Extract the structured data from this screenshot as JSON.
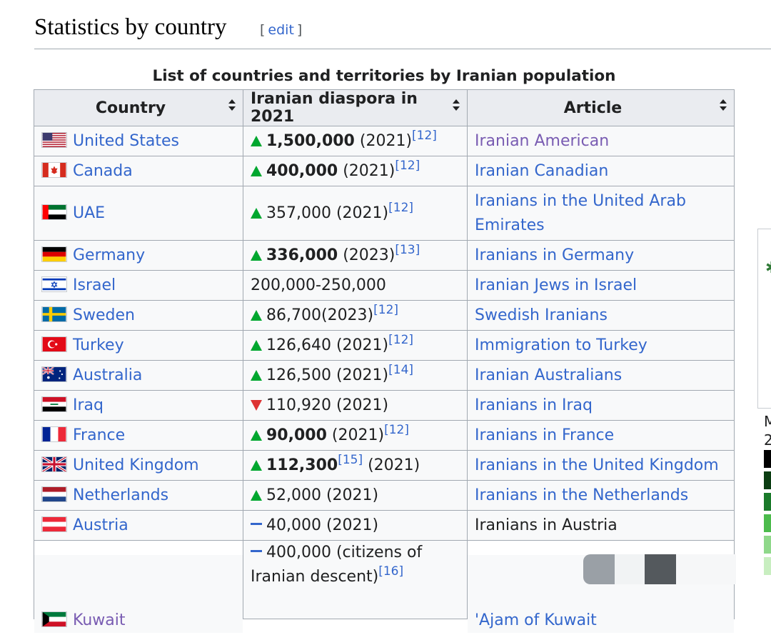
{
  "section": {
    "title": "Statistics by country",
    "edit_open": "[",
    "edit_label": "edit",
    "edit_close": "]"
  },
  "table": {
    "caption": "List of countries and territories by Iranian population",
    "headers": [
      "Country",
      "Iranian diaspora in 2021",
      "Article"
    ],
    "rows": [
      {
        "country": "United States",
        "flag": "us-flag",
        "trend": "up",
        "value": "1,500,000",
        "bold": true,
        "year": " (2021)",
        "ref": "[12]",
        "article": "Iranian American",
        "article_visited": true
      },
      {
        "country": "Canada",
        "flag": "canada-flag",
        "trend": "up",
        "value": "400,000",
        "bold": true,
        "year": " (2021)",
        "ref": "[12]",
        "article": "Iranian Canadian"
      },
      {
        "country": "UAE",
        "flag": "uae-flag",
        "trend": "up",
        "value": "357,000",
        "year": " (2021)",
        "ref": "[12]",
        "article": "Iranians in the United Arab Emirates"
      },
      {
        "country": "Germany",
        "flag": "germany-flag",
        "trend": "up",
        "value": "336,000",
        "bold": true,
        "year": " (2023)",
        "ref": "[13]",
        "article": "Iranians in Germany"
      },
      {
        "country": "Israel",
        "flag": "israel-flag",
        "trend": "",
        "value": "200,000-250,000",
        "year": "",
        "ref": "",
        "article": "Iranian Jews in Israel"
      },
      {
        "country": "Sweden",
        "flag": "sweden-flag",
        "trend": "up",
        "value": "86,700",
        "year": "(2023)",
        "ref": "[12]",
        "article": "Swedish Iranians"
      },
      {
        "country": "Turkey",
        "flag": "turkey-flag",
        "trend": "up",
        "value": "126,640",
        "year": " (2021)",
        "ref": "[12]",
        "article": "Immigration to Turkey"
      },
      {
        "country": "Australia",
        "flag": "australia-flag",
        "trend": "up",
        "value": "126,500",
        "year": " (2021)",
        "ref": "[14]",
        "article": "Iranian Australians"
      },
      {
        "country": "Iraq",
        "flag": "iraq-flag",
        "trend": "down",
        "value": "110,920",
        "year": " (2021)",
        "ref": "",
        "article": "Iranians in Iraq"
      },
      {
        "country": "France",
        "flag": "france-flag",
        "trend": "up",
        "value": "90,000",
        "bold": true,
        "year": " (2021)",
        "ref": "[12]",
        "article": "Iranians in France"
      },
      {
        "country": "United Kingdom",
        "flag": "uk-flag",
        "trend": "up",
        "value": "112,300",
        "bold": true,
        "ref_inline": "[15]",
        "year": " (2021)",
        "ref": "",
        "article": "Iranians in the United Kingdom"
      },
      {
        "country": "Netherlands",
        "flag": "netherlands-flag",
        "trend": "up",
        "value": "52,000",
        "year": " (2021)",
        "ref": "",
        "article": "Iranians in the Netherlands"
      },
      {
        "country": "Austria",
        "flag": "austria-flag",
        "trend": "same",
        "value": "40,000",
        "year": " (2021)",
        "ref": "",
        "article": "Iranians in Austria",
        "article_plain": true
      },
      {
        "country": "Kuwait",
        "flag": "kuwait-flag",
        "trend": "same",
        "value": "400,000 (citizens of Iranian descent)",
        "year": "",
        "ref": "[16]",
        "article": "'Ajam of Kuwait",
        "country_visited": true
      }
    ]
  },
  "sidebar": {
    "text1": "M",
    "text2": "2"
  },
  "colors": {
    "link": "#3366cc",
    "visited": "#795cb2",
    "up": "#00a72f",
    "down": "#dd3333",
    "header_bg": "#eaecf0",
    "cell_bg": "#f8f9fa"
  }
}
